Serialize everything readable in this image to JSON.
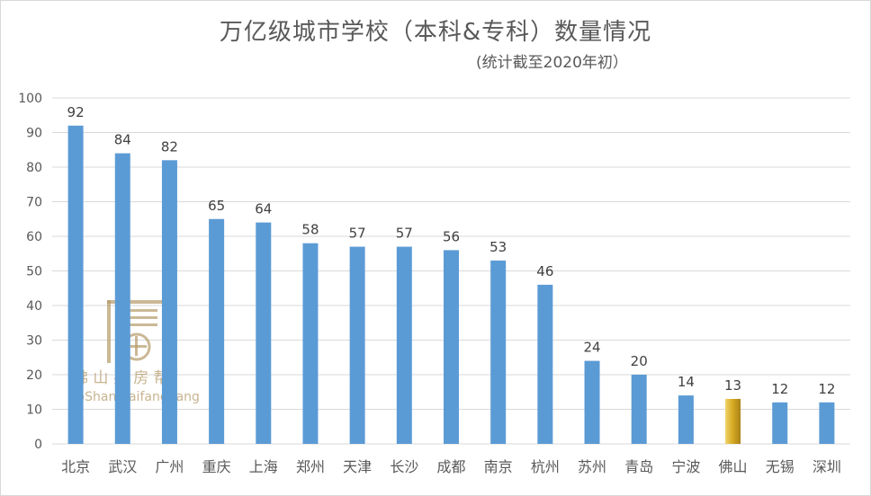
{
  "chart_data": {
    "type": "bar",
    "title": "万亿级城市学校（本科&专科）数量情况",
    "subtitle": "(统计截至2020年初）",
    "categories": [
      "北京",
      "武汉",
      "广州",
      "重庆",
      "上海",
      "郑州",
      "天津",
      "长沙",
      "成都",
      "南京",
      "杭州",
      "苏州",
      "青岛",
      "宁波",
      "佛山",
      "无锡",
      "深圳"
    ],
    "values": [
      92,
      84,
      82,
      65,
      64,
      58,
      57,
      57,
      56,
      53,
      46,
      24,
      20,
      14,
      13,
      12,
      12
    ],
    "highlight_category": "佛山",
    "ylim": [
      0,
      100
    ],
    "yticks": [
      0,
      10,
      20,
      30,
      40,
      50,
      60,
      70,
      80,
      90,
      100
    ],
    "grid": true,
    "colors": {
      "bar": "#5b9bd5",
      "highlight": "#d4a820"
    }
  },
  "watermark": {
    "cn": "佛 山 买 房 帮",
    "en": "FoShanmaifangbang"
  }
}
